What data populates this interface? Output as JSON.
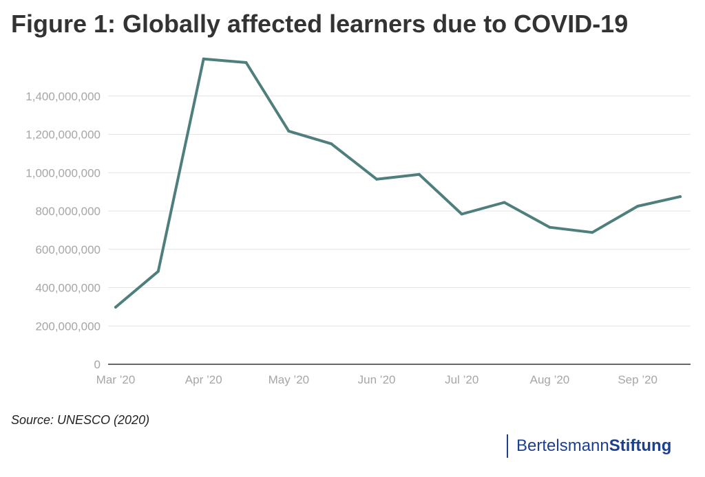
{
  "chart_data": {
    "type": "line",
    "title": "Figure 1: Globally affected learners due to COVID-19",
    "xlabel": "",
    "ylabel": "",
    "x_tick_labels": [
      "Mar ’20",
      "Apr ’20",
      "May ’20",
      "Jun ’20",
      "Jul ’20",
      "Aug ’20",
      "Sep ’20"
    ],
    "y_tick_labels": [
      "0",
      "200,000,000",
      "400,000,000",
      "600,000,000",
      "800,000,000",
      "1,000,000,000",
      "1,200,000,000",
      "1,400,000,000"
    ],
    "y_ticks": [
      0,
      200000000,
      400000000,
      600000000,
      800000000,
      1000000000,
      1200000000,
      1400000000
    ],
    "ylim": [
      0,
      1600000000
    ],
    "grid": true,
    "color": "#4f7f7d",
    "series": [
      {
        "name": "",
        "x": [
          "2020-03-01",
          "2020-03-16",
          "2020-04-01",
          "2020-04-16",
          "2020-05-01",
          "2020-05-16",
          "2020-06-01",
          "2020-06-16",
          "2020-07-01",
          "2020-07-16",
          "2020-08-01",
          "2020-08-16",
          "2020-09-01",
          "2020-09-16"
        ],
        "values": [
          298000000,
          485000000,
          1594000000,
          1575000000,
          1217000000,
          1151000000,
          966000000,
          991000000,
          784000000,
          845000000,
          715000000,
          688000000,
          825000000,
          875000000
        ]
      }
    ]
  },
  "source": "Source: UNESCO (2020)",
  "logo": {
    "part1": "Bertelsmann",
    "part2": "Stiftung"
  }
}
